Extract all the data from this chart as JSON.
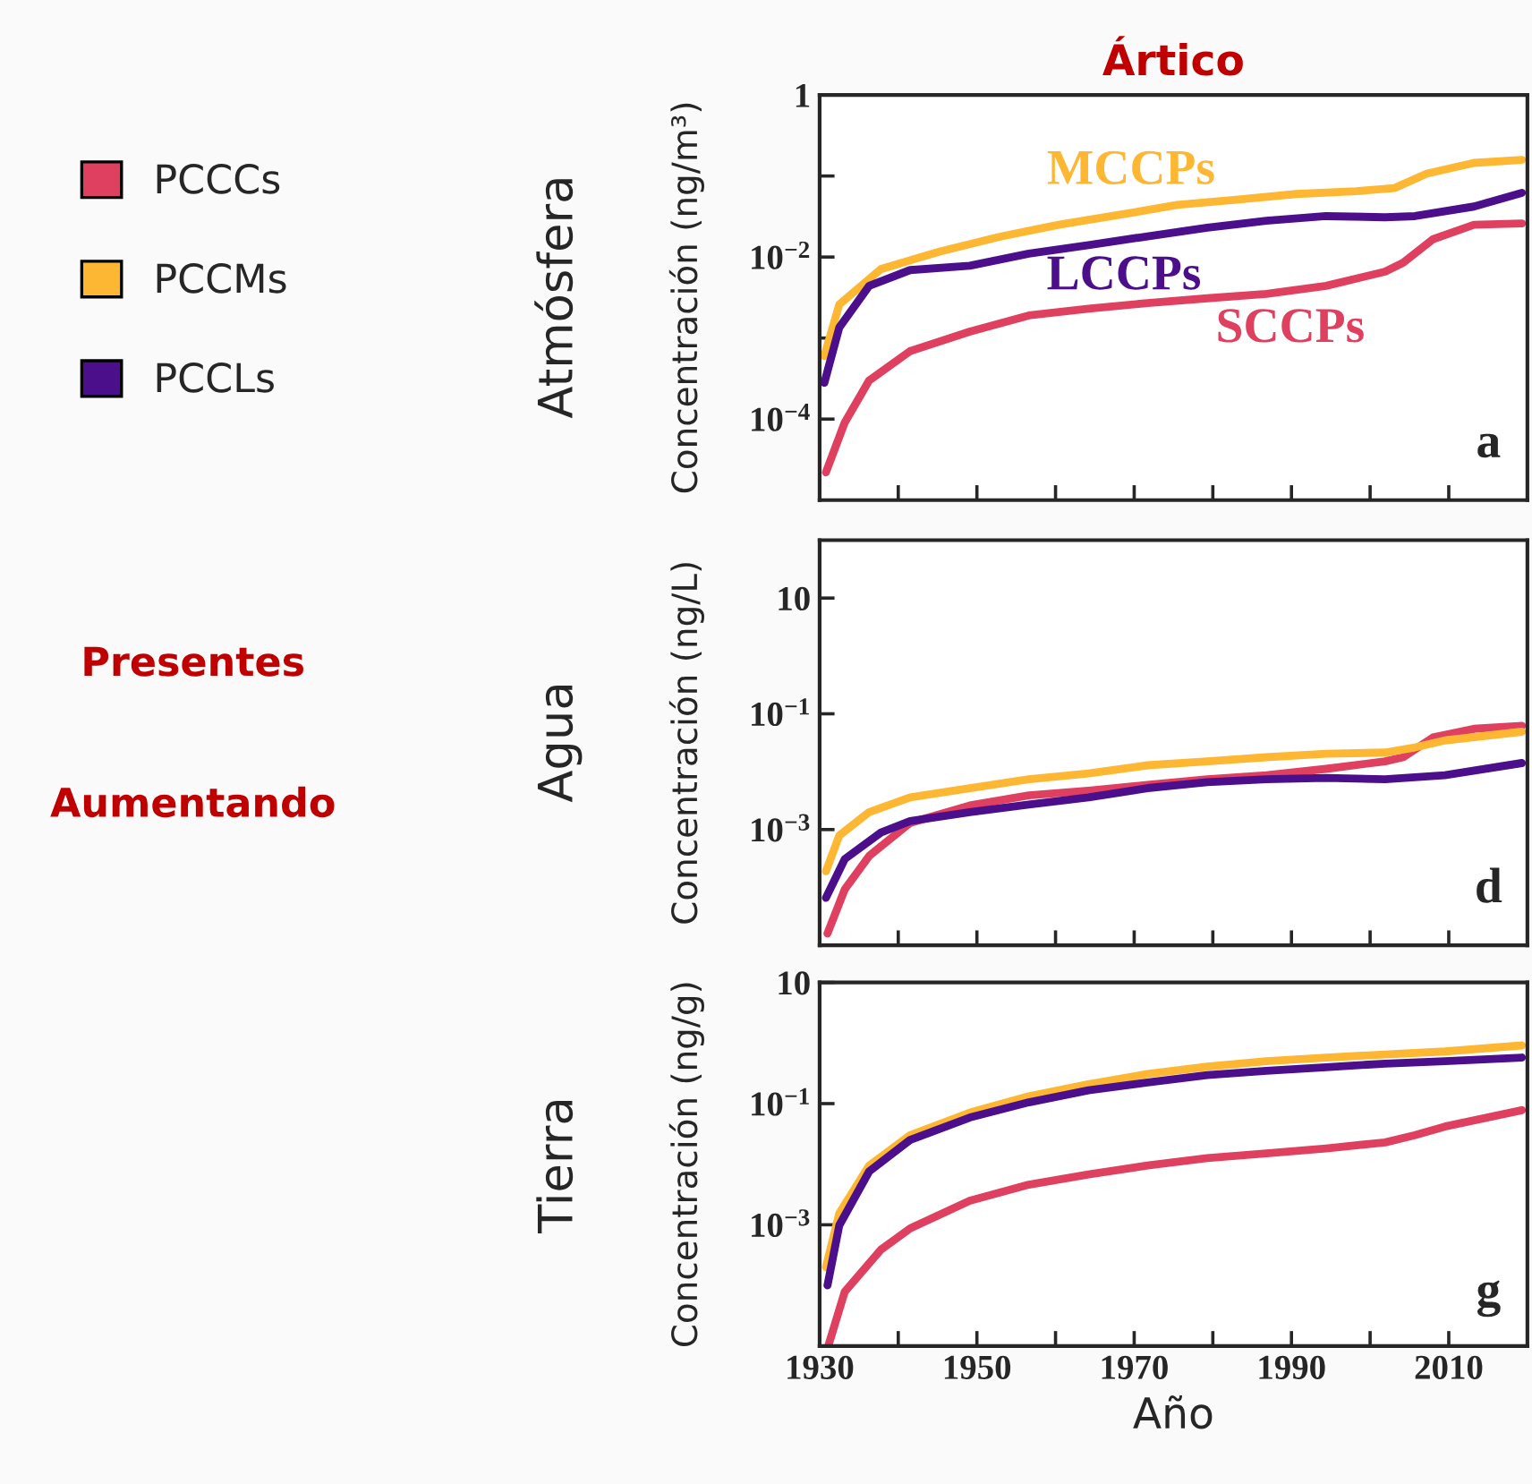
{
  "chart_data": [
    {
      "type": "line",
      "title": "Ártico",
      "ylabel": "Concentración (ng/m³)",
      "log": "y",
      "xlim": [
        1930,
        2020
      ],
      "ylim": [
        1e-05,
        1
      ],
      "xticks": [
        {
          "value": 1930,
          "label": null
        },
        {
          "value": 1940,
          "label": null
        },
        {
          "value": 1950,
          "label": null
        },
        {
          "value": 1960,
          "label": null
        },
        {
          "value": 1970,
          "label": null
        },
        {
          "value": 1980,
          "label": null
        },
        {
          "value": 1990,
          "label": null
        },
        {
          "value": 2000,
          "label": null
        },
        {
          "value": 2010,
          "label": null
        }
      ],
      "yticks": [
        {
          "value": 0.0001,
          "label": "10$^{−4}$"
        },
        {
          "value": 0.001,
          "label": null
        },
        {
          "value": 0.01,
          "label": "10$^{−2}$"
        },
        {
          "value": 0.1,
          "label": null
        },
        1
      ],
      "tick_labels": "y",
      "grid": false,
      "legend": "left",
      "marker": "none",
      "line_style": "solid",
      "series": [
        {
          "name": "PCCCs",
          "color": "#e0405f",
          "x": [
            1930.8,
            1933.2,
            1936.3,
            1941.5,
            1949.1,
            1956.6,
            1964.2,
            1971.7,
            1979.3,
            1986.8,
            1994.4,
            2001.9,
            2004.2,
            2008.0,
            2013.2,
            2019.3
          ],
          "values": [
            2.2e-05,
            9.1e-05,
            0.0003,
            0.00069,
            0.0012,
            0.0019,
            0.0023,
            0.0027,
            0.0031,
            0.0035,
            0.0044,
            0.0066,
            0.0085,
            0.0166,
            0.025,
            0.026
          ]
        },
        {
          "name": "PCCMs",
          "color": "#fdb733",
          "x": [
            1930.6,
            1932.5,
            1937.8,
            1945.3,
            1952.9,
            1960.4,
            1968.0,
            1975.5,
            1983.0,
            1990.6,
            1998.2,
            2003.1,
            2007.2,
            2013.2,
            2019.3
          ],
          "values": [
            0.0006,
            0.0026,
            0.0071,
            0.0117,
            0.0178,
            0.025,
            0.033,
            0.044,
            0.051,
            0.06,
            0.065,
            0.071,
            0.107,
            0.145,
            0.158
          ]
        },
        {
          "name": "PCCLs",
          "color": "#4b0f8c",
          "x": [
            1930.6,
            1932.5,
            1936.3,
            1941.5,
            1949.1,
            1956.6,
            1964.2,
            1971.7,
            1979.3,
            1986.8,
            1994.4,
            2001.9,
            2005.7,
            2013.2,
            2019.3
          ],
          "values": [
            0.00028,
            0.00135,
            0.0044,
            0.0069,
            0.0078,
            0.011,
            0.014,
            0.018,
            0.023,
            0.028,
            0.032,
            0.031,
            0.032,
            0.042,
            0.062
          ]
        }
      ],
      "annotations": [
        "Atmósfera",
        "a",
        "Presentes",
        "Aumentando",
        "SCCPs",
        "MCCPs",
        "LCCPs"
      ]
    },
    {
      "type": "line",
      "ylabel": "Concentración (ng/L)",
      "log": "y",
      "xlim": [
        1930,
        2020
      ],
      "ylim": [
        1e-05,
        100
      ],
      "xticks": [
        {
          "value": 1930,
          "label": null
        },
        {
          "value": 1940,
          "label": null
        },
        {
          "value": 1950,
          "label": null
        },
        {
          "value": 1960,
          "label": null
        },
        {
          "value": 1970,
          "label": null
        },
        {
          "value": 1980,
          "label": null
        },
        {
          "value": 1990,
          "label": null
        },
        {
          "value": 2000,
          "label": null
        },
        {
          "value": 2010,
          "label": null
        }
      ],
      "yticks": [
        {
          "value": 0.001,
          "label": "10$^{−3}$"
        },
        {
          "value": 0.1,
          "label": "10$^{−1}$"
        },
        10
      ],
      "tick_labels": "y",
      "grid": false,
      "marker": "none",
      "line_style": "solid",
      "series": [
        {
          "color": "#e0405f",
          "x": [
            1931.0,
            1933.2,
            1936.3,
            1941.5,
            1949.1,
            1956.6,
            1964.2,
            1971.7,
            1979.3,
            1986.8,
            1994.4,
            2001.9,
            2004.2,
            2008.0,
            2013.2,
            2019.3
          ],
          "values": [
            1.6e-05,
            9.3e-05,
            0.00035,
            0.0013,
            0.0026,
            0.0039,
            0.0047,
            0.0059,
            0.0074,
            0.0087,
            0.0112,
            0.0151,
            0.0178,
            0.039,
            0.055,
            0.062
          ]
        },
        {
          "color": "#fdb733",
          "x": [
            1930.8,
            1932.5,
            1936.3,
            1941.5,
            1949.1,
            1956.6,
            1964.2,
            1971.7,
            1979.3,
            1986.8,
            1994.4,
            2001.9,
            2005.7,
            2009.5,
            2019.3
          ],
          "values": [
            0.00019,
            0.00079,
            0.002,
            0.0036,
            0.0052,
            0.0074,
            0.0093,
            0.0129,
            0.0151,
            0.0178,
            0.0204,
            0.0214,
            0.0263,
            0.0347,
            0.049
          ]
        },
        {
          "color": "#4b0f8c",
          "x": [
            1930.8,
            1933.2,
            1937.8,
            1941.5,
            1949.1,
            1956.6,
            1964.2,
            1971.7,
            1979.3,
            1986.8,
            1994.4,
            2001.9,
            2009.5,
            2019.3
          ],
          "values": [
            6.6e-05,
            0.00031,
            0.00089,
            0.0014,
            0.002,
            0.0027,
            0.0036,
            0.0052,
            0.0066,
            0.0074,
            0.0078,
            0.0074,
            0.0087,
            0.0141
          ]
        }
      ],
      "annotations": [
        "Agua",
        "d"
      ]
    },
    {
      "type": "line",
      "xlabel": "Año",
      "ylabel": "Concentración (ng/g)",
      "log": "y",
      "xlim": [
        1930,
        2020
      ],
      "ylim": [
        1e-05,
        10
      ],
      "xticks": [
        1930,
        {
          "value": 1940,
          "label": null
        },
        1950,
        {
          "value": 1960,
          "label": null
        },
        1970,
        {
          "value": 1980,
          "label": null
        },
        1990,
        {
          "value": 2000,
          "label": null
        },
        2010
      ],
      "yticks": [
        {
          "value": 0.001,
          "label": "10$^{−3}$"
        },
        {
          "value": 0.1,
          "label": "10$^{−1}$"
        },
        10
      ],
      "grid": false,
      "marker": "none",
      "line_style": "solid",
      "series": [
        {
          "color": "#e0405f",
          "x": [
            1931.1,
            1933.2,
            1937.8,
            1941.5,
            1949.1,
            1956.6,
            1964.2,
            1971.7,
            1979.3,
            1986.8,
            1994.4,
            2001.9,
            2005.7,
            2009.5,
            2019.3
          ],
          "values": [
            1e-05,
            7.9e-05,
            0.00039,
            0.00087,
            0.0025,
            0.0046,
            0.0068,
            0.0095,
            0.0126,
            0.0151,
            0.0182,
            0.0229,
            0.0302,
            0.0417,
            0.078
          ]
        },
        {
          "color": "#fdb733",
          "x": [
            1930.8,
            1932.5,
            1936.3,
            1941.5,
            1949.1,
            1956.6,
            1964.2,
            1971.7,
            1979.3,
            1986.8,
            1994.4,
            2001.9,
            2009.5,
            2019.3
          ],
          "values": [
            0.0002,
            0.00155,
            0.0095,
            0.03,
            0.071,
            0.132,
            0.209,
            0.309,
            0.407,
            0.501,
            0.575,
            0.646,
            0.724,
            0.912
          ]
        },
        {
          "color": "#4b0f8c",
          "x": [
            1931.0,
            1932.5,
            1936.3,
            1941.5,
            1949.1,
            1956.6,
            1964.2,
            1971.7,
            1979.3,
            1986.8,
            1994.4,
            2001.9,
            2009.5,
            2019.3
          ],
          "values": [
            0.0001,
            0.00098,
            0.0076,
            0.0251,
            0.0589,
            0.105,
            0.166,
            0.224,
            0.295,
            0.347,
            0.398,
            0.457,
            0.501,
            0.575
          ]
        }
      ],
      "annotations": [
        "Tierra",
        "g"
      ]
    }
  ]
}
